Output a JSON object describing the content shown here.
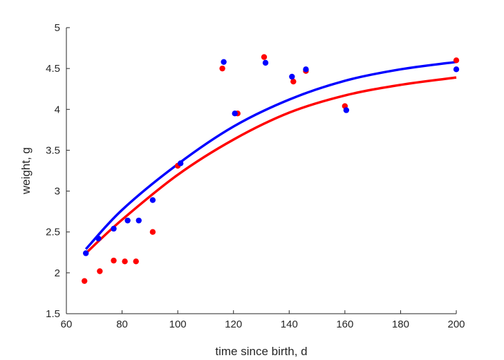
{
  "chart_data": {
    "type": "scatter",
    "title": "",
    "xlabel": "time since birth, d",
    "ylabel": "weight, g",
    "xlim": [
      60,
      200
    ],
    "ylim": [
      1.5,
      5
    ],
    "xticks": [
      "60",
      "80",
      "100",
      "120",
      "140",
      "160",
      "180",
      "200"
    ],
    "yticks": [
      "1.5",
      "2",
      "2.5",
      "3",
      "3.5",
      "4",
      "4.5",
      "5"
    ],
    "grid": false,
    "legend": "none",
    "series": [
      {
        "color": "#ff0000",
        "points": [
          {
            "x": 66.5,
            "y": 1.9
          },
          {
            "x": 72,
            "y": 2.02
          },
          {
            "x": 77,
            "y": 2.15
          },
          {
            "x": 81,
            "y": 2.14
          },
          {
            "x": 85,
            "y": 2.14
          },
          {
            "x": 91,
            "y": 2.5
          },
          {
            "x": 100,
            "y": 3.31
          },
          {
            "x": 116,
            "y": 4.5
          },
          {
            "x": 121.5,
            "y": 3.95
          },
          {
            "x": 131,
            "y": 4.64
          },
          {
            "x": 141.5,
            "y": 4.34
          },
          {
            "x": 146,
            "y": 4.47
          },
          {
            "x": 160,
            "y": 4.04
          },
          {
            "x": 200,
            "y": 4.6
          }
        ],
        "fit": [
          {
            "x": 67,
            "y": 2.24
          },
          {
            "x": 80,
            "y": 2.65
          },
          {
            "x": 100,
            "y": 3.2
          },
          {
            "x": 120,
            "y": 3.63
          },
          {
            "x": 140,
            "y": 3.96
          },
          {
            "x": 160,
            "y": 4.17
          },
          {
            "x": 180,
            "y": 4.3
          },
          {
            "x": 200,
            "y": 4.39
          }
        ]
      },
      {
        "color": "#0000ff",
        "points": [
          {
            "x": 67,
            "y": 2.24
          },
          {
            "x": 71.5,
            "y": 2.42
          },
          {
            "x": 77,
            "y": 2.54
          },
          {
            "x": 82,
            "y": 2.64
          },
          {
            "x": 86,
            "y": 2.64
          },
          {
            "x": 91,
            "y": 2.89
          },
          {
            "x": 101,
            "y": 3.34
          },
          {
            "x": 116.5,
            "y": 4.58
          },
          {
            "x": 120.5,
            "y": 3.95
          },
          {
            "x": 131.5,
            "y": 4.57
          },
          {
            "x": 141,
            "y": 4.4
          },
          {
            "x": 146,
            "y": 4.49
          },
          {
            "x": 160.5,
            "y": 3.99
          },
          {
            "x": 200,
            "y": 4.49
          }
        ],
        "fit": [
          {
            "x": 67,
            "y": 2.29
          },
          {
            "x": 80,
            "y": 2.77
          },
          {
            "x": 100,
            "y": 3.33
          },
          {
            "x": 120,
            "y": 3.79
          },
          {
            "x": 140,
            "y": 4.12
          },
          {
            "x": 160,
            "y": 4.35
          },
          {
            "x": 180,
            "y": 4.49
          },
          {
            "x": 200,
            "y": 4.58
          }
        ]
      }
    ]
  }
}
